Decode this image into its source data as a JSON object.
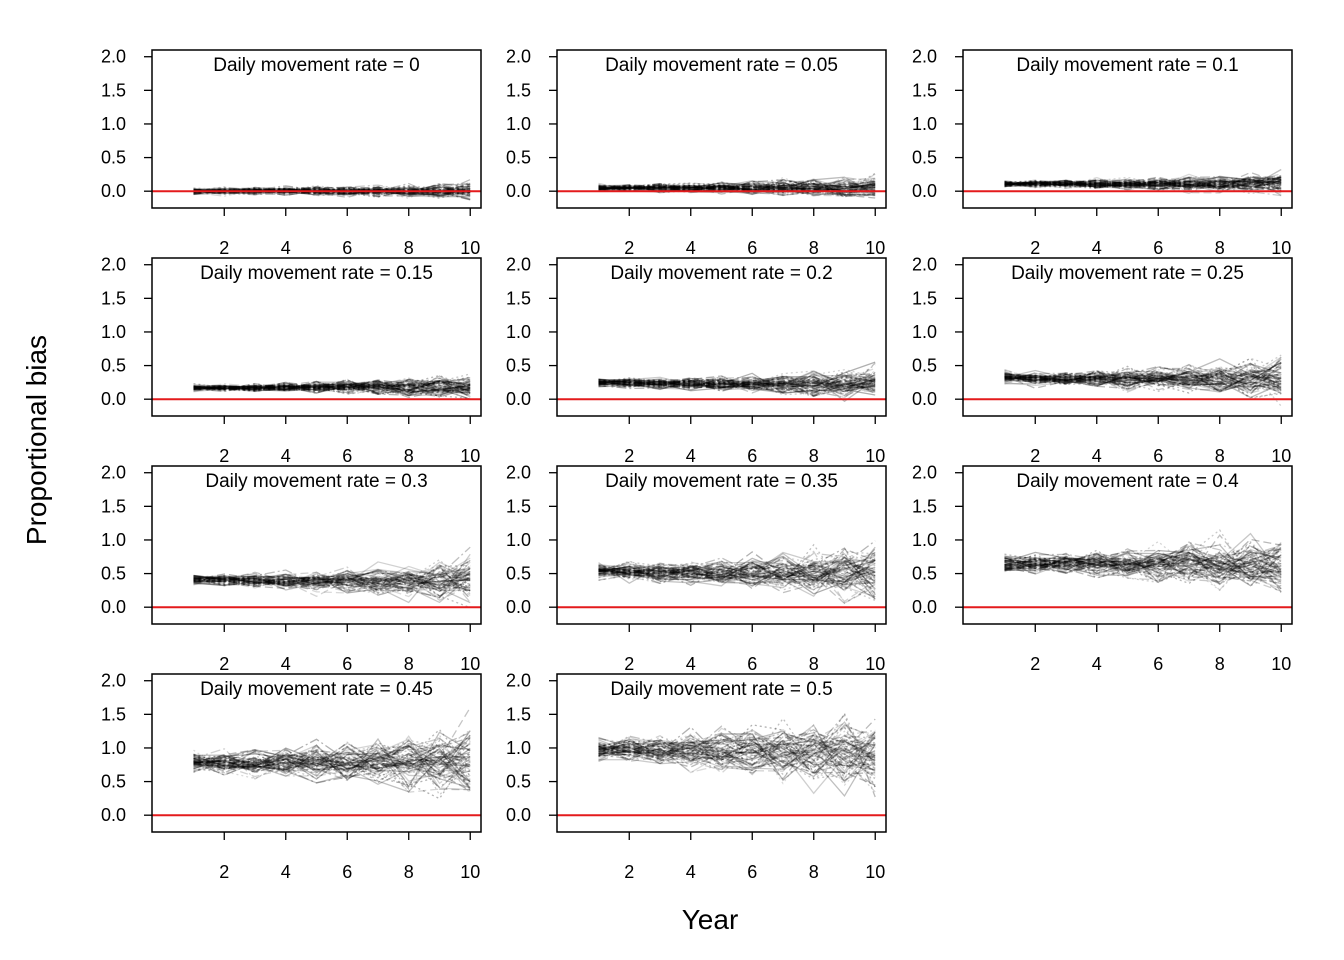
{
  "figure": {
    "xlabel": "Year",
    "ylabel": "Proportional bias"
  },
  "chart_data": {
    "type": "line",
    "x": [
      1,
      2,
      3,
      4,
      5,
      6,
      7,
      8,
      9,
      10
    ],
    "xticks": [
      "2",
      "4",
      "6",
      "8",
      "10"
    ],
    "yticks": [
      "0.0",
      "0.5",
      "1.0",
      "1.5",
      "2.0"
    ],
    "ylim": [
      -0.25,
      2.1
    ],
    "xlim": [
      -0.35,
      10.35
    ],
    "reference_line": {
      "y": 0,
      "color": "#e41a1c"
    },
    "trace_color": "#000000",
    "grid": false,
    "panels": [
      {
        "title": "Daily movement rate = 0",
        "median_bias": [
          0.0,
          0.0,
          0.0,
          0.01,
          0.0,
          0.0,
          0.0,
          0.0,
          0.0,
          0.0
        ],
        "spread_start": 0.03,
        "spread_end": 0.08
      },
      {
        "title": "Daily movement rate = 0.05",
        "median_bias": [
          0.05,
          0.05,
          0.05,
          0.05,
          0.05,
          0.05,
          0.05,
          0.05,
          0.05,
          0.06
        ],
        "spread_start": 0.03,
        "spread_end": 0.12
      },
      {
        "title": "Daily movement rate = 0.1",
        "median_bias": [
          0.11,
          0.11,
          0.11,
          0.11,
          0.11,
          0.11,
          0.11,
          0.11,
          0.11,
          0.11
        ],
        "spread_start": 0.03,
        "spread_end": 0.1
      },
      {
        "title": "Daily movement rate = 0.15",
        "median_bias": [
          0.17,
          0.17,
          0.17,
          0.18,
          0.18,
          0.18,
          0.18,
          0.18,
          0.18,
          0.18
        ],
        "spread_start": 0.03,
        "spread_end": 0.12
      },
      {
        "title": "Daily movement rate = 0.2",
        "median_bias": [
          0.25,
          0.24,
          0.23,
          0.23,
          0.23,
          0.23,
          0.23,
          0.23,
          0.23,
          0.23
        ],
        "spread_start": 0.04,
        "spread_end": 0.15
      },
      {
        "title": "Daily movement rate = 0.25",
        "median_bias": [
          0.32,
          0.31,
          0.31,
          0.31,
          0.31,
          0.31,
          0.31,
          0.31,
          0.31,
          0.31
        ],
        "spread_start": 0.06,
        "spread_end": 0.2
      },
      {
        "title": "Daily movement rate = 0.3",
        "median_bias": [
          0.41,
          0.4,
          0.39,
          0.39,
          0.39,
          0.39,
          0.39,
          0.39,
          0.39,
          0.4
        ],
        "spread_start": 0.05,
        "spread_end": 0.22
      },
      {
        "title": "Daily movement rate = 0.35",
        "median_bias": [
          0.54,
          0.53,
          0.52,
          0.52,
          0.52,
          0.52,
          0.52,
          0.52,
          0.5,
          0.48
        ],
        "spread_start": 0.07,
        "spread_end": 0.3
      },
      {
        "title": "Daily movement rate = 0.4",
        "median_bias": [
          0.64,
          0.64,
          0.64,
          0.64,
          0.64,
          0.64,
          0.64,
          0.64,
          0.66,
          0.64
        ],
        "spread_start": 0.08,
        "spread_end": 0.3
      },
      {
        "title": "Daily movement rate = 0.45",
        "median_bias": [
          0.8,
          0.79,
          0.78,
          0.78,
          0.78,
          0.78,
          0.79,
          0.79,
          0.8,
          0.8
        ],
        "spread_start": 0.1,
        "spread_end": 0.35
      },
      {
        "title": "Daily movement rate = 0.5",
        "median_bias": [
          0.98,
          0.97,
          0.96,
          0.95,
          0.95,
          0.95,
          0.95,
          0.95,
          0.95,
          0.92
        ],
        "spread_start": 0.12,
        "spread_end": 0.4
      }
    ]
  }
}
